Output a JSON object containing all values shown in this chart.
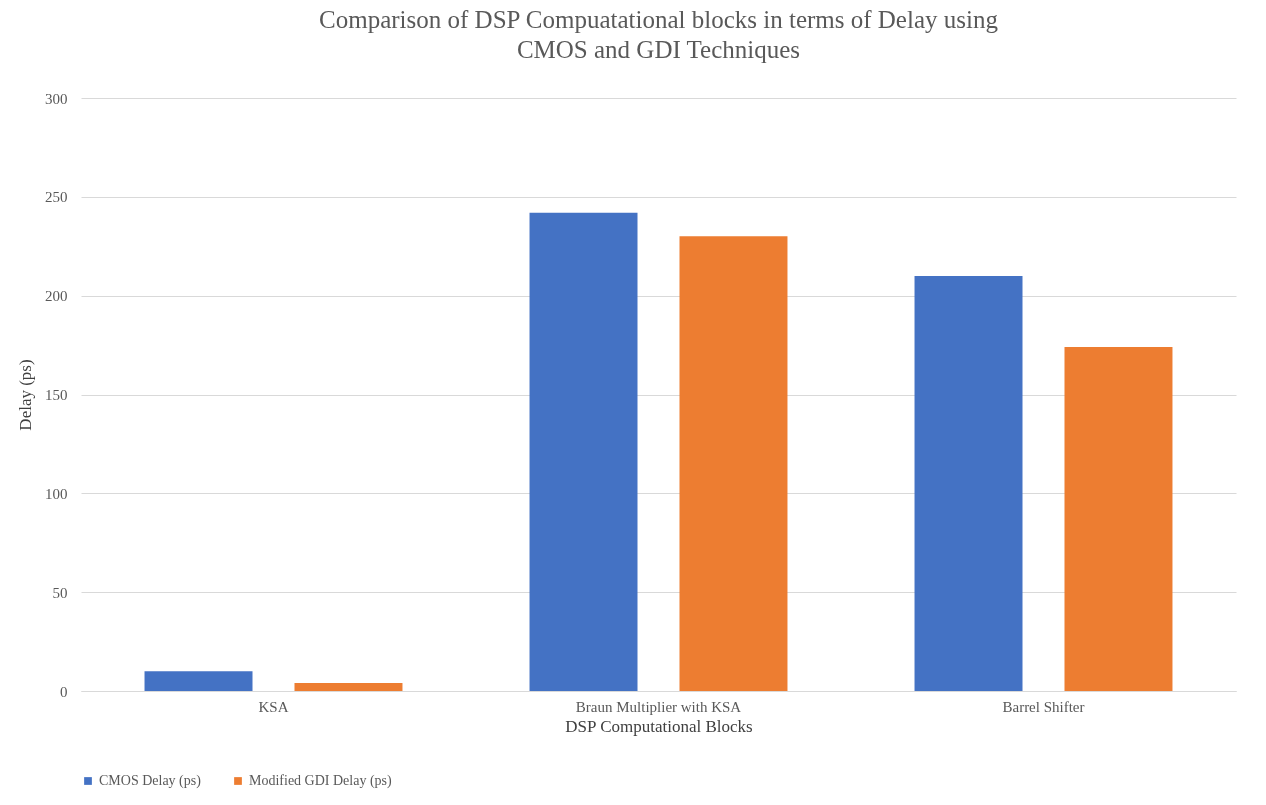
{
  "chart_data": {
    "type": "bar",
    "title": [
      "Comparison of DSP Compuatational blocks in terms of Delay using",
      "CMOS and GDI Techniques"
    ],
    "xlabel": "DSP Computational Blocks",
    "ylabel": "Delay (ps)",
    "categories": [
      "KSA",
      "Braun Multiplier with KSA",
      "Barrel Shifter"
    ],
    "series": [
      {
        "name": "CMOS Delay (ps)",
        "color": "#4472c4",
        "values": [
          10,
          242,
          210
        ]
      },
      {
        "name": "Modified GDI Delay (ps)",
        "color": "#ed7d31",
        "values": [
          4,
          230,
          174
        ]
      }
    ],
    "ylim": [
      0,
      300
    ],
    "yticks": [
      0,
      50,
      100,
      150,
      200,
      250,
      300
    ],
    "grid": "y",
    "legend": "bottom"
  }
}
